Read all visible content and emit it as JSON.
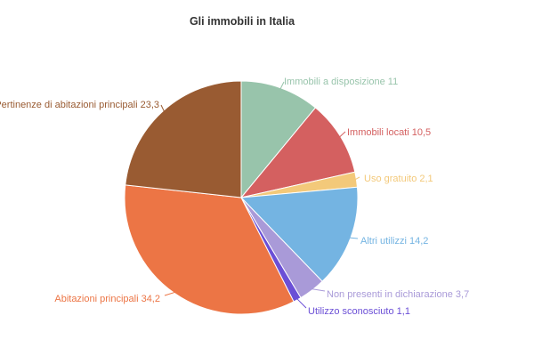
{
  "chart_data": {
    "type": "pie",
    "title": "Gli immobili in Italia",
    "slices": [
      {
        "label": "Immobili a disposizione",
        "value_text": "11",
        "value": 11,
        "color": "#98c4ab"
      },
      {
        "label": "Immobili locati",
        "value_text": "10,5",
        "value": 10.5,
        "color": "#d46060"
      },
      {
        "label": "Uso gratuito",
        "value_text": "2,1",
        "value": 2.1,
        "color": "#f3c97a"
      },
      {
        "label": "Altri utilizzi",
        "value_text": "14,2",
        "value": 14.2,
        "color": "#74b4e2"
      },
      {
        "label": "Non presenti in dichiarazione",
        "value_text": "3,7",
        "value": 3.7,
        "color": "#a99ad8"
      },
      {
        "label": "Utilizzo sconosciuto",
        "value_text": "1,1",
        "value": 1.1,
        "color": "#6b4fd6"
      },
      {
        "label": "Abitazioni principali",
        "value_text": "34,2",
        "value": 34.2,
        "color": "#ec7545"
      },
      {
        "label": "Pertinenze di abitazioni principali",
        "value_text": "23,3",
        "value": 23.3,
        "color": "#995b32"
      }
    ]
  }
}
